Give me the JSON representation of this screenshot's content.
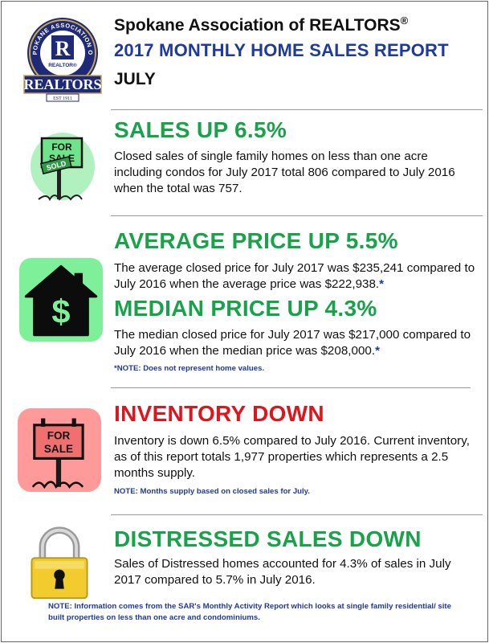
{
  "header": {
    "org_name": "Spokane Association of REALTORS",
    "org_mark": "®",
    "report_title": "2017 MONTHLY HOME SALES REPORT",
    "month": "JULY"
  },
  "logo": {
    "ring_text": "SPOKANE ASSOCIATION OF",
    "r_letter": "R",
    "small_label": "REALTOR®",
    "banner": "REALTORS",
    "est": "EST 1911"
  },
  "sections": {
    "sales": {
      "heading": "SALES UP 6.5%",
      "body": "Closed sales of single family homes on less than one acre including condos for July 2017 total 806 compared to July 2016 when the total was 757.",
      "sign_top": "FOR",
      "sign_bottom": "SALE",
      "sold": "SOLD"
    },
    "average": {
      "heading": "AVERAGE PRICE UP 5.5%",
      "body": "The average closed price for July 2017 was $235,241 compared to July 2016 when the average price was $222,938.",
      "star": "*",
      "house_symbol": "$"
    },
    "median": {
      "heading": "MEDIAN PRICE UP 4.3%",
      "body": "The median closed price for July 2017 was $217,000 compared to July 2016 when the median price was $208,000.",
      "star": "*",
      "note": "*NOTE:  Does not represent home values."
    },
    "inventory": {
      "heading": "INVENTORY DOWN",
      "body": "Inventory is down 6.5% compared to July 2016. Current inventory, as of this report totals 1,977 properties which represents a 2.5 months supply.",
      "note": "NOTE:  Months supply based on closed sales for July.",
      "sign_top": "FOR",
      "sign_bottom": "SALE"
    },
    "distressed": {
      "heading": "DISTRESSED SALES DOWN",
      "body": "Sales of Distressed homes accounted for 4.3% of sales in July 2017 compared to 5.7% in July 2016."
    }
  },
  "footer_note": "NOTE:  Information comes from the SAR's Monthly Activity Report which looks at single family residential/ site built properties on less than one acre and condominiums.",
  "colors": {
    "green": "#18a34a",
    "red": "#e0141c",
    "blue": "#1f3a9e"
  }
}
